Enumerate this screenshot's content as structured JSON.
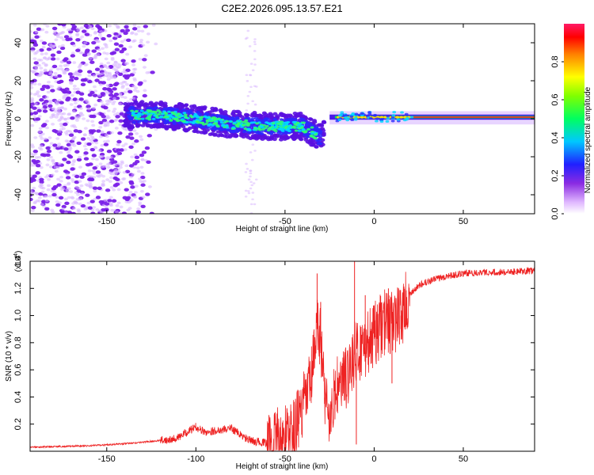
{
  "title": "C2E2.2026.095.13.57.E21",
  "chart_data": [
    {
      "type": "heatmap",
      "name": "spectrogram",
      "title": "C2E2.2026.095.13.57.E21",
      "xlabel": "Height of straight line (km)",
      "ylabel": "Frequency (Hz)",
      "xlim": [
        -193,
        90
      ],
      "ylim": [
        -50,
        50
      ],
      "xticks": [
        -150,
        -100,
        -50,
        0,
        50
      ],
      "yticks": [
        -40,
        -20,
        0,
        20,
        40
      ],
      "colorbar": {
        "label": "Normalized spectral amplitude",
        "range": [
          0,
          1
        ],
        "ticks": [
          0.0,
          0.2,
          0.4,
          0.6,
          0.8
        ],
        "colormap": [
          "#ffffff",
          "#e8c8ff",
          "#8a2be2",
          "#3c1cff",
          "#00e0ff",
          "#00ff40",
          "#ffff00",
          "#ff8000",
          "#ff0000",
          "#ff1a66"
        ]
      },
      "features": [
        {
          "description": "scattered noise",
          "x_range": [
            -193,
            -122
          ],
          "freq_range": [
            -50,
            50
          ],
          "amplitude": 0.15
        },
        {
          "description": "signal trace",
          "points": [
            [
              -140,
              2
            ],
            [
              -120,
              2
            ],
            [
              -100,
              0
            ],
            [
              -80,
              -3
            ],
            [
              -60,
              -4
            ],
            [
              -40,
              -4
            ],
            [
              -30,
              -10
            ],
            [
              -25,
              -2
            ],
            [
              -10,
              0
            ],
            [
              0,
              1
            ],
            [
              20,
              1
            ],
            [
              50,
              1
            ],
            [
              90,
              1
            ]
          ]
        }
      ]
    },
    {
      "type": "line",
      "name": "snr",
      "xlabel": "Height of straight line (km)",
      "ylabel": "SNR (10 * v/v)",
      "multiplier_label": "(x10",
      "multiplier_exp": "4",
      "multiplier_close": ")",
      "xlim": [
        -193,
        90
      ],
      "ylim": [
        0,
        1.4
      ],
      "xticks": [
        -150,
        -100,
        -50,
        0,
        50
      ],
      "yticks": [
        0.2,
        0.4,
        0.6,
        0.8,
        1.0,
        1.2,
        1.4
      ],
      "color": "#ee2222",
      "envelope": [
        [
          -193,
          0.03
        ],
        [
          -160,
          0.04
        ],
        [
          -135,
          0.06
        ],
        [
          -120,
          0.08
        ],
        [
          -110,
          0.1
        ],
        [
          -100,
          0.18
        ],
        [
          -95,
          0.14
        ],
        [
          -90,
          0.15
        ],
        [
          -85,
          0.16
        ],
        [
          -80,
          0.17
        ],
        [
          -75,
          0.12
        ],
        [
          -70,
          0.08
        ],
        [
          -60,
          0.06
        ],
        [
          -55,
          0.08
        ],
        [
          -45,
          0.15
        ],
        [
          -38,
          0.4
        ],
        [
          -35,
          0.55
        ],
        [
          -32,
          0.9
        ],
        [
          -30,
          0.85
        ],
        [
          -28,
          0.45
        ],
        [
          -24,
          0.2
        ],
        [
          -22,
          0.45
        ],
        [
          -18,
          0.5
        ],
        [
          -15,
          0.55
        ],
        [
          -12,
          0.7
        ],
        [
          -8,
          0.75
        ],
        [
          -5,
          0.78
        ],
        [
          0,
          0.85
        ],
        [
          5,
          0.95
        ],
        [
          10,
          0.95
        ],
        [
          15,
          1.0
        ],
        [
          20,
          1.15
        ],
        [
          25,
          1.22
        ],
        [
          30,
          1.25
        ],
        [
          40,
          1.29
        ],
        [
          50,
          1.31
        ],
        [
          60,
          1.32
        ],
        [
          75,
          1.32
        ],
        [
          90,
          1.33
        ]
      ],
      "spikes": [
        [
          -32,
          1.31
        ],
        [
          -30,
          1.1
        ],
        [
          -11,
          1.4
        ],
        [
          -10,
          0.05
        ],
        [
          -5,
          1.15
        ],
        [
          8,
          1.2
        ],
        [
          10,
          0.5
        ],
        [
          15,
          0.9
        ]
      ]
    }
  ]
}
